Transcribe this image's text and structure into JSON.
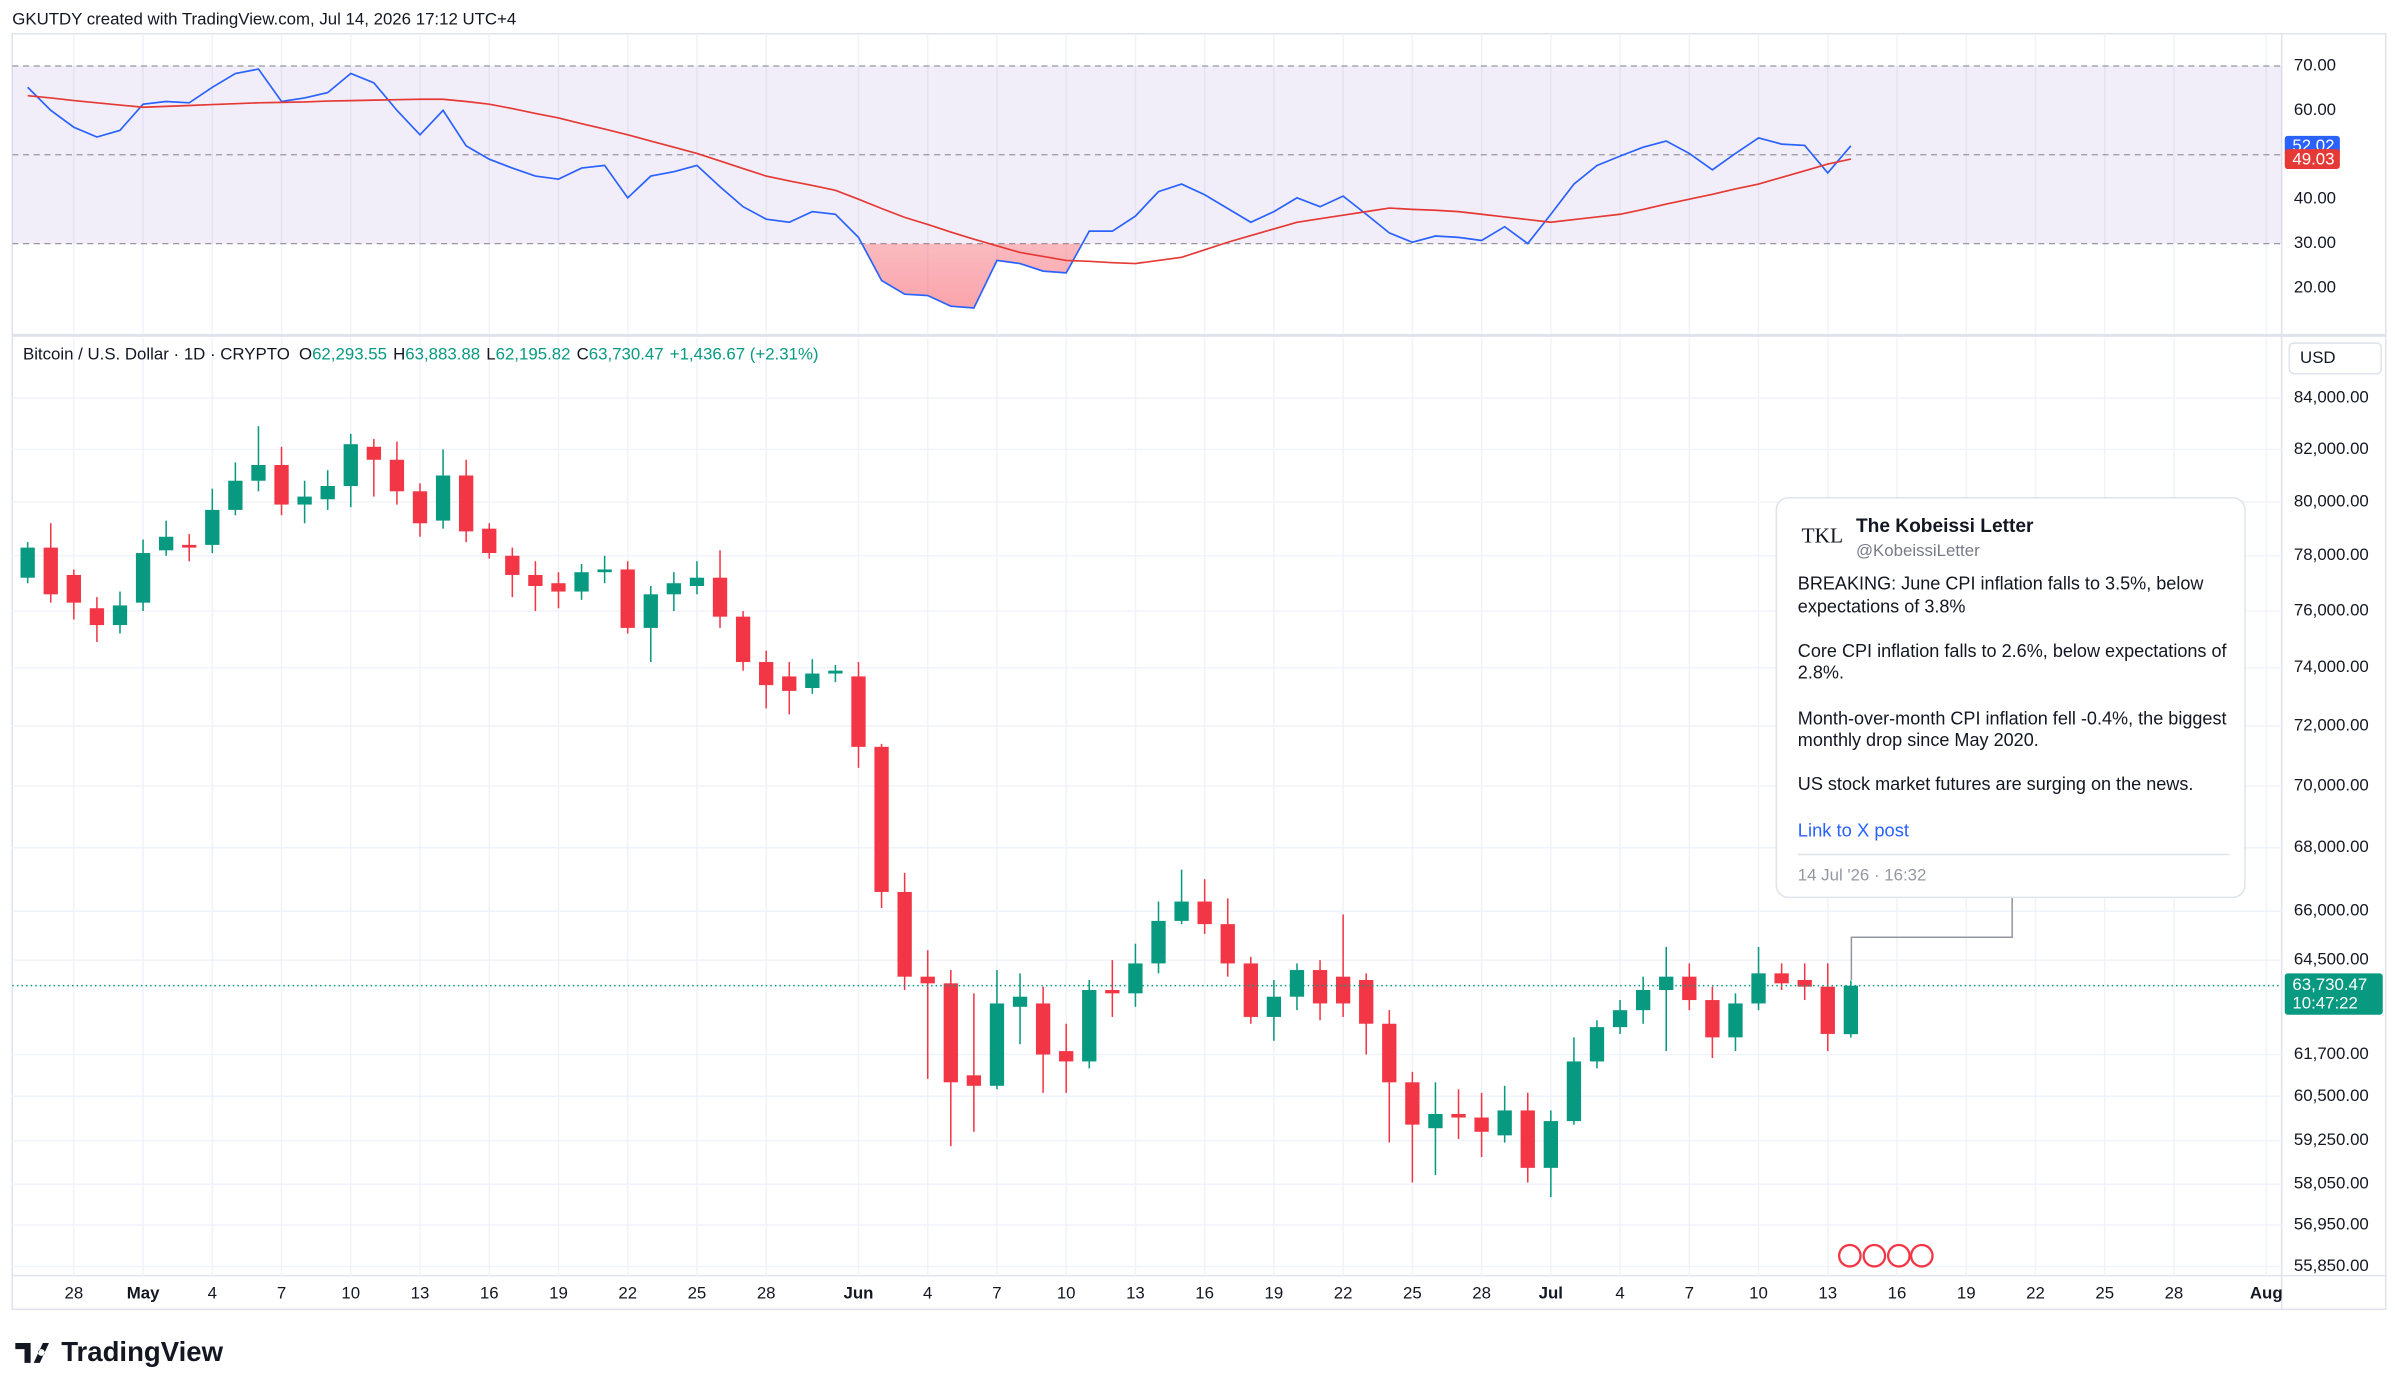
{
  "header": {
    "credit": "GKUTDY created with TradingView.com, Jul 14, 2026 17:12 UTC+4"
  },
  "chart_data": {
    "type": "candlestick",
    "title": "Bitcoin / U.S. Dollar · 1D · CRYPTO",
    "legend": [
      {
        "label": "O",
        "value": "62,293.55"
      },
      {
        "label": "H",
        "value": "63,883.88"
      },
      {
        "label": "L",
        "value": "62,195.82"
      },
      {
        "label": "C",
        "value": "63,730.47"
      }
    ],
    "change": "+1,436.67 (+2.31%)",
    "currency": "USD",
    "price_label": "63,730.47",
    "countdown": "10:47:22",
    "up_color": "#089981",
    "down_color": "#f23645",
    "log_scale": true,
    "grid": true,
    "x": [
      "2026-04-26",
      "2026-04-27",
      "2026-04-28",
      "2026-04-29",
      "2026-04-30",
      "2026-05-01",
      "2026-05-02",
      "2026-05-03",
      "2026-05-04",
      "2026-05-05",
      "2026-05-06",
      "2026-05-07",
      "2026-05-08",
      "2026-05-09",
      "2026-05-10",
      "2026-05-11",
      "2026-05-12",
      "2026-05-13",
      "2026-05-14",
      "2026-05-15",
      "2026-05-16",
      "2026-05-17",
      "2026-05-18",
      "2026-05-19",
      "2026-05-20",
      "2026-05-21",
      "2026-05-22",
      "2026-05-23",
      "2026-05-24",
      "2026-05-25",
      "2026-05-26",
      "2026-05-27",
      "2026-05-28",
      "2026-05-29",
      "2026-05-30",
      "2026-05-31",
      "2026-06-01",
      "2026-06-02",
      "2026-06-03",
      "2026-06-04",
      "2026-06-05",
      "2026-06-06",
      "2026-06-07",
      "2026-06-08",
      "2026-06-09",
      "2026-06-10",
      "2026-06-11",
      "2026-06-12",
      "2026-06-13",
      "2026-06-14",
      "2026-06-15",
      "2026-06-16",
      "2026-06-17",
      "2026-06-18",
      "2026-06-19",
      "2026-06-20",
      "2026-06-21",
      "2026-06-22",
      "2026-06-23",
      "2026-06-24",
      "2026-06-25",
      "2026-06-26",
      "2026-06-27",
      "2026-06-28",
      "2026-06-29",
      "2026-06-30",
      "2026-07-01",
      "2026-07-02",
      "2026-07-03",
      "2026-07-04",
      "2026-07-05",
      "2026-07-06",
      "2026-07-07",
      "2026-07-08",
      "2026-07-09",
      "2026-07-10",
      "2026-07-11",
      "2026-07-12",
      "2026-07-13",
      "2026-07-14"
    ],
    "open": [
      77200,
      78300,
      77300,
      76100,
      75500,
      76300,
      78200,
      78400,
      78400,
      79700,
      80800,
      81400,
      79900,
      80100,
      80600,
      82100,
      81600,
      80400,
      79300,
      81000,
      79000,
      78000,
      77300,
      77000,
      76700,
      77400,
      77500,
      75400,
      76600,
      76900,
      77200,
      75800,
      74200,
      73700,
      73300,
      73800,
      73700,
      71300,
      66600,
      64000,
      63800,
      61100,
      60800,
      63100,
      63200,
      61800,
      61500,
      63600,
      63500,
      64400,
      65700,
      66300,
      65600,
      64400,
      62800,
      63400,
      64200,
      64000,
      63900,
      62600,
      60900,
      59600,
      60000,
      59900,
      59400,
      60100,
      58500,
      59800,
      61500,
      62500,
      63000,
      63600,
      64000,
      63300,
      62200,
      63200,
      64100,
      63900,
      63700,
      62293.55
    ],
    "high": [
      78500,
      79200,
      77500,
      76500,
      76700,
      78600,
      79300,
      78800,
      80500,
      81500,
      82900,
      82100,
      80800,
      81200,
      82600,
      82400,
      82300,
      80700,
      82000,
      81600,
      79200,
      78300,
      77800,
      77400,
      77700,
      78000,
      77800,
      76900,
      77400,
      77800,
      78200,
      76000,
      74600,
      74200,
      74300,
      74100,
      74200,
      71400,
      67200,
      64800,
      64200,
      63500,
      64200,
      64100,
      63700,
      62600,
      63900,
      64500,
      65000,
      66300,
      67300,
      67000,
      66400,
      64600,
      63900,
      64400,
      64500,
      65900,
      64100,
      63000,
      61200,
      60900,
      60700,
      60600,
      60800,
      60600,
      60100,
      62200,
      62700,
      63300,
      64000,
      64900,
      64400,
      63700,
      63500,
      64900,
      64400,
      64400,
      64400,
      63883.88
    ],
    "low": [
      77000,
      76300,
      75700,
      74900,
      75200,
      76000,
      78000,
      77800,
      78100,
      79500,
      80400,
      79500,
      79200,
      79700,
      79800,
      80200,
      79900,
      78700,
      79000,
      78500,
      77900,
      76500,
      76000,
      76100,
      76400,
      77000,
      75200,
      74200,
      76000,
      76600,
      75400,
      73900,
      72600,
      72400,
      73100,
      73500,
      70600,
      66100,
      63600,
      61000,
      59100,
      59500,
      60700,
      62000,
      60600,
      60600,
      61300,
      62800,
      63100,
      64100,
      65600,
      65300,
      64000,
      62600,
      62100,
      63000,
      62700,
      62800,
      61700,
      59200,
      58100,
      58300,
      59300,
      58800,
      59200,
      58100,
      57700,
      59700,
      61300,
      62300,
      62600,
      61800,
      63000,
      61600,
      61800,
      63000,
      63600,
      63300,
      61800,
      62195.82
    ],
    "close": [
      78300,
      76600,
      76300,
      75500,
      76200,
      78100,
      78700,
      78300,
      79700,
      80800,
      81400,
      79900,
      80200,
      80600,
      82200,
      81600,
      80400,
      79200,
      81000,
      78900,
      78100,
      77300,
      76900,
      76700,
      77400,
      77500,
      75400,
      76600,
      77000,
      77200,
      75800,
      74200,
      73400,
      73200,
      73800,
      73900,
      71300,
      66600,
      64000,
      63800,
      60900,
      60800,
      63200,
      63400,
      61700,
      61500,
      63600,
      63500,
      64400,
      65700,
      66300,
      65600,
      64400,
      62800,
      63400,
      64200,
      63200,
      63200,
      62600,
      60900,
      59700,
      60000,
      59900,
      59500,
      60100,
      58500,
      59800,
      61500,
      62500,
      63000,
      63600,
      64000,
      63300,
      62200,
      63200,
      64100,
      63800,
      63700,
      62300,
      63730.47
    ],
    "xlim": [
      "2026-04-25",
      "2026-08-02"
    ],
    "xticks": [
      {
        "value": "2026-04-28",
        "label": "28"
      },
      {
        "value": "2026-05-01",
        "label": "May"
      },
      {
        "value": "2026-05-04",
        "label": "4"
      },
      {
        "value": "2026-05-07",
        "label": "7"
      },
      {
        "value": "2026-05-10",
        "label": "10"
      },
      {
        "value": "2026-05-13",
        "label": "13"
      },
      {
        "value": "2026-05-16",
        "label": "16"
      },
      {
        "value": "2026-05-19",
        "label": "19"
      },
      {
        "value": "2026-05-22",
        "label": "22"
      },
      {
        "value": "2026-05-25",
        "label": "25"
      },
      {
        "value": "2026-05-28",
        "label": "28"
      },
      {
        "value": "2026-06-01",
        "label": "Jun"
      },
      {
        "value": "2026-06-04",
        "label": "4"
      },
      {
        "value": "2026-06-07",
        "label": "7"
      },
      {
        "value": "2026-06-10",
        "label": "10"
      },
      {
        "value": "2026-06-13",
        "label": "13"
      },
      {
        "value": "2026-06-16",
        "label": "16"
      },
      {
        "value": "2026-06-19",
        "label": "19"
      },
      {
        "value": "2026-06-22",
        "label": "22"
      },
      {
        "value": "2026-06-25",
        "label": "25"
      },
      {
        "value": "2026-06-28",
        "label": "28"
      },
      {
        "value": "2026-07-01",
        "label": "Jul"
      },
      {
        "value": "2026-07-04",
        "label": "4"
      },
      {
        "value": "2026-07-07",
        "label": "7"
      },
      {
        "value": "2026-07-10",
        "label": "10"
      },
      {
        "value": "2026-07-13",
        "label": "13"
      },
      {
        "value": "2026-07-16",
        "label": "16"
      },
      {
        "value": "2026-07-19",
        "label": "19"
      },
      {
        "value": "2026-07-22",
        "label": "22"
      },
      {
        "value": "2026-07-25",
        "label": "25"
      },
      {
        "value": "2026-07-28",
        "label": "28"
      },
      {
        "value": "2026-08-01",
        "label": "Aug"
      }
    ],
    "ylim": [
      55610,
      86450
    ],
    "yticks": [
      {
        "value": 84000,
        "label": "84,000.00"
      },
      {
        "value": 82000,
        "label": "82,000.00"
      },
      {
        "value": 80000,
        "label": "80,000.00"
      },
      {
        "value": 78000,
        "label": "78,000.00"
      },
      {
        "value": 76000,
        "label": "76,000.00"
      },
      {
        "value": 74000,
        "label": "74,000.00"
      },
      {
        "value": 72000,
        "label": "72,000.00"
      },
      {
        "value": 70000,
        "label": "70,000.00"
      },
      {
        "value": 68000,
        "label": "68,000.00"
      },
      {
        "value": 66000,
        "label": "66,000.00"
      },
      {
        "value": 64500,
        "label": "64,500.00"
      },
      {
        "value": 61700,
        "label": "61,700.00"
      },
      {
        "value": 60500,
        "label": "60,500.00"
      },
      {
        "value": 59250,
        "label": "59,250.00"
      },
      {
        "value": 58050,
        "label": "58,050.00"
      },
      {
        "value": 56950,
        "label": "56,950.00"
      },
      {
        "value": 55850,
        "label": "55,850.00"
      }
    ],
    "indicator": {
      "type": "line",
      "ylim": [
        10.7,
        74.5
      ],
      "yticks": [
        {
          "value": 70,
          "label": "70.00"
        },
        {
          "value": 60,
          "label": "60.00"
        },
        {
          "value": 50,
          "label": "50.00"
        },
        {
          "value": 40,
          "label": "40.00"
        },
        {
          "value": 30,
          "label": "30.00"
        },
        {
          "value": 20,
          "label": "20.00"
        }
      ],
      "band": [
        30,
        70
      ],
      "band_color": "#7e57c2",
      "levels": [
        70,
        50,
        30
      ],
      "oversold_color": "#f23645",
      "series": [
        {
          "color": "#2962ff",
          "values": [
            65.2,
            60,
            56.2,
            54,
            55.5,
            61.4,
            62,
            61.7,
            65.2,
            68.3,
            69.3,
            62,
            62.8,
            64,
            68.3,
            66.2,
            60,
            54.5,
            60,
            52,
            49,
            47,
            45.2,
            44.5,
            47,
            47.6,
            40.3,
            45.2,
            46.2,
            47.6,
            42.8,
            38.3,
            35.5,
            34.8,
            37.2,
            36.6,
            31.4,
            21.7,
            18.6,
            18.3,
            15.9,
            15.5,
            26.2,
            25.5,
            23.8,
            23.4,
            32.8,
            32.8,
            36.2,
            41.7,
            43.4,
            41,
            37.9,
            34.8,
            37.2,
            40.3,
            38.3,
            40.7,
            36.6,
            32.4,
            30.3,
            31.7,
            31.4,
            30.7,
            33.8,
            30,
            36.6,
            43.4,
            47.6,
            49.7,
            51.7,
            53.1,
            50.3,
            46.6,
            50.3,
            53.8,
            52.4,
            52.1,
            45.9,
            52.02
          ]
        },
        {
          "color": "#e53935",
          "values": [
            63.3,
            62.8,
            62.2,
            61.7,
            61.2,
            60.7,
            60.9,
            61.1,
            61.3,
            61.5,
            61.7,
            61.8,
            61.9,
            62.1,
            62.2,
            62.3,
            62.4,
            62.5,
            62.5,
            62.0,
            61.4,
            60.4,
            59.3,
            58.3,
            57.0,
            55.8,
            54.5,
            53.1,
            51.7,
            50.3,
            48.6,
            46.9,
            45.2,
            44.1,
            43.1,
            42.0,
            40.0,
            37.9,
            35.9,
            34.3,
            32.6,
            31.0,
            29.5,
            28.0,
            27.1,
            26.2,
            26.0,
            25.7,
            25.5,
            26.2,
            26.9,
            28.6,
            30.3,
            31.8,
            33.3,
            34.8,
            35.6,
            36.4,
            37.2,
            38.0,
            37.7,
            37.5,
            37.2,
            36.6,
            36.0,
            35.4,
            34.8,
            35.4,
            36.0,
            36.6,
            37.7,
            38.9,
            40.0,
            41.1,
            42.3,
            43.4,
            44.9,
            46.4,
            47.9,
            49.03
          ]
        }
      ]
    }
  },
  "tweet": {
    "logo": "TKL",
    "name": "The Kobeissi Letter",
    "handle": "@KobeissiLetter",
    "paragraphs": [
      "BREAKING: June CPI inflation falls to 3.5%, below expectations of 3.8%",
      "Core CPI inflation falls to 2.6%, below expectations of 2.8%.",
      "Month-over-month CPI inflation fell -0.4%, the biggest monthly drop since May 2020.",
      "US stock market futures are surging on the news."
    ],
    "link": "Link to X post",
    "date": "14 Jul '26 · 16:32"
  },
  "footer": {
    "brand": "TradingView"
  }
}
